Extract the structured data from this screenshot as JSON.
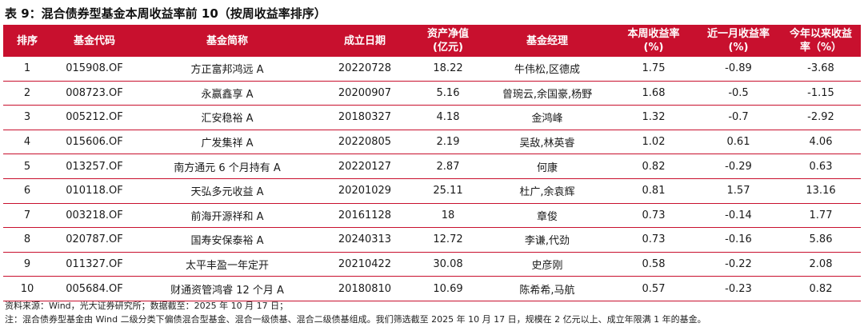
{
  "title": "表 9：混合债券型基金本周收益率前 10（按周收益率排序）",
  "table": {
    "headers": [
      "排序",
      "基金代码",
      "基金简称",
      "成立日期",
      "资产净值\n(亿元)",
      "基金经理",
      "本周收益率\n(%)",
      "近一月收益率\n(%)",
      "今年以来收益\n率（%）"
    ],
    "rows": [
      [
        "1",
        "015908.OF",
        "方正富邦鸿远 A",
        "20220728",
        "18.22",
        "牛伟松,区德成",
        "1.75",
        "-0.89",
        "-3.68"
      ],
      [
        "2",
        "008723.OF",
        "永赢鑫享 A",
        "20200907",
        "5.16",
        "曾琬云,余国豪,杨野",
        "1.68",
        "-0.5",
        "-1.15"
      ],
      [
        "3",
        "005212.OF",
        "汇安稳裕 A",
        "20180327",
        "4.18",
        "金鸿峰",
        "1.32",
        "-0.7",
        "-2.92"
      ],
      [
        "4",
        "015606.OF",
        "广发集祥 A",
        "20220805",
        "2.19",
        "吴敌,林英睿",
        "1.02",
        "0.61",
        "4.06"
      ],
      [
        "5",
        "013257.OF",
        "南方通元 6 个月持有 A",
        "20220127",
        "2.87",
        "何康",
        "0.82",
        "-0.29",
        "0.63"
      ],
      [
        "6",
        "010118.OF",
        "天弘多元收益 A",
        "20201029",
        "25.11",
        "杜广,余袁辉",
        "0.81",
        "1.57",
        "13.16"
      ],
      [
        "7",
        "003218.OF",
        "前海开源祥和 A",
        "20161128",
        "18",
        "章俊",
        "0.73",
        "-0.14",
        "1.77"
      ],
      [
        "8",
        "020787.OF",
        "国寿安保泰裕 A",
        "20240313",
        "12.72",
        "李谦,代劲",
        "0.73",
        "-0.16",
        "5.86"
      ],
      [
        "9",
        "011327.OF",
        "太平丰盈一年定开",
        "20210422",
        "30.08",
        "史彦刚",
        "0.58",
        "-0.22",
        "2.08"
      ],
      [
        "10",
        "005684.OF",
        "财通资管鸿睿 12 个月 A",
        "20180810",
        "10.69",
        "陈希希,马航",
        "0.57",
        "-0.23",
        "0.82"
      ]
    ]
  },
  "notes": {
    "source": "资料来源：Wind，光大证券研究所；数据截至：2025 年 10 月 17 日；",
    "note": "注：混合债券型基金由 Wind 二级分类下偏债混合型基金、混合一级债基、混合二级债基组成。我们筛选截至 2025 年 10 月 17 日，规模在 2 亿元以上、成立年限满 1 年的基金。"
  },
  "colors": {
    "header_bg": "#c8102e",
    "header_text": "#ffffff",
    "rule": "#c8102e"
  }
}
